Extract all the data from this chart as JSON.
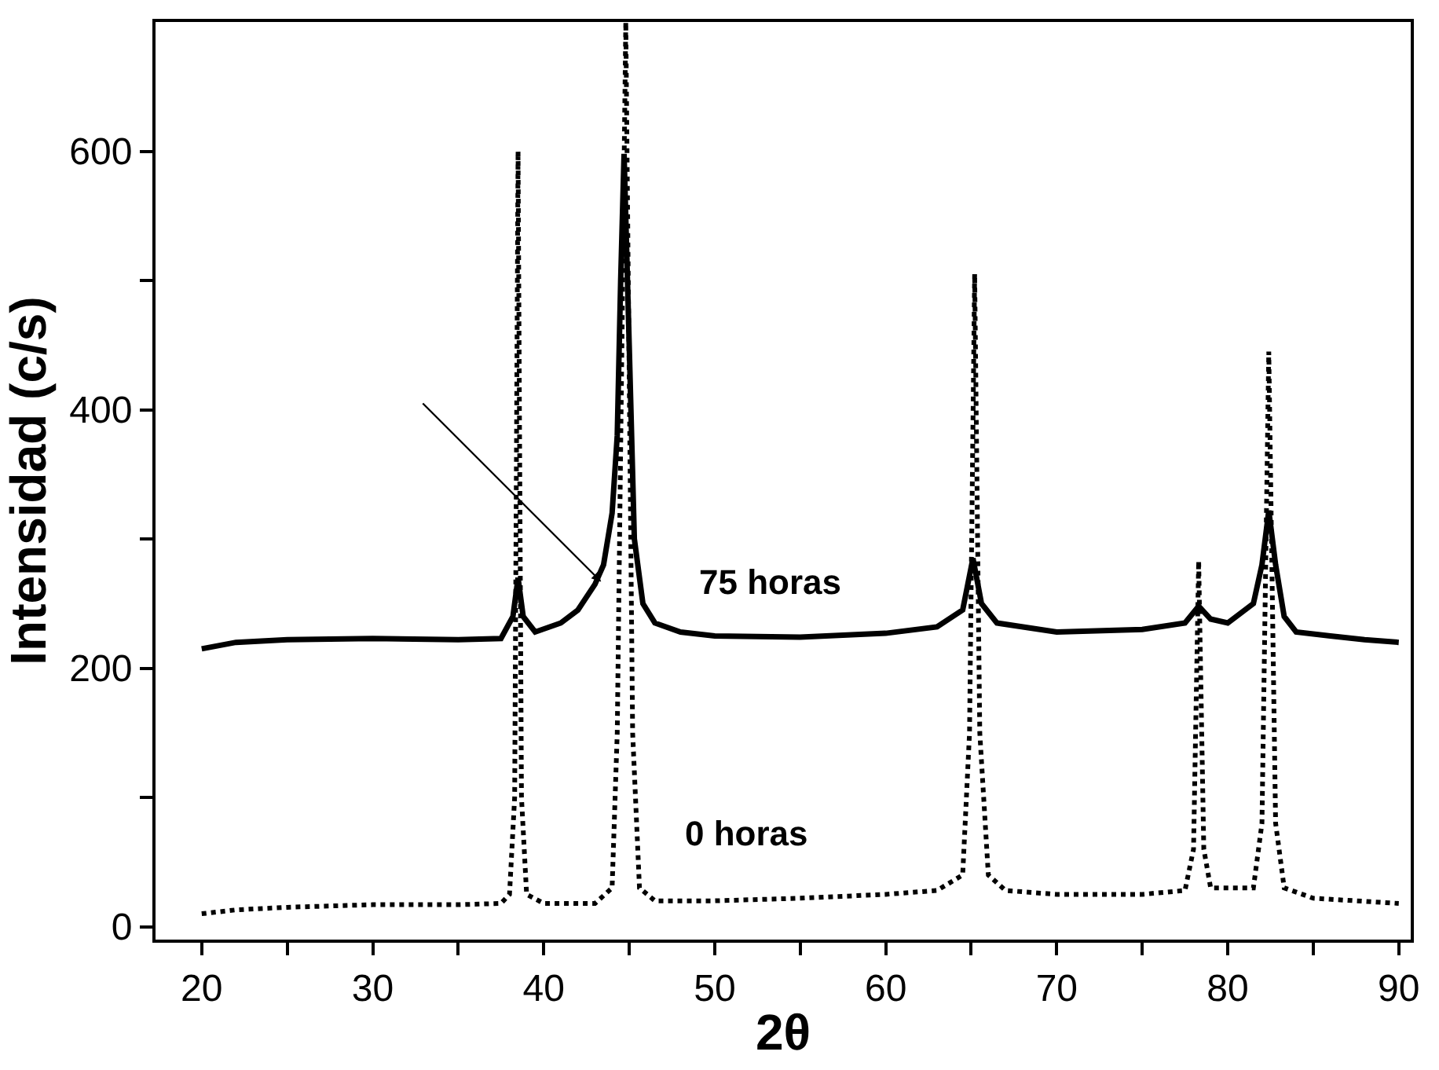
{
  "chart_data": {
    "type": "line",
    "xlabel": "2θ",
    "ylabel": "Intensidad (c/s)",
    "xlim": [
      17.3,
      90.7
    ],
    "ylim": [
      -10,
      700
    ],
    "xticks": [
      20,
      {
        "value": 25,
        "label": null
      },
      30,
      {
        "value": 35,
        "label": null
      },
      40,
      {
        "value": 45,
        "label": null
      },
      50,
      {
        "value": 55,
        "label": null
      },
      60,
      {
        "value": 65,
        "label": null
      },
      70,
      {
        "value": 75,
        "label": null
      },
      80,
      {
        "value": 85,
        "label": null
      },
      90
    ],
    "yticks": [
      0,
      {
        "value": 100,
        "label": null
      },
      200,
      {
        "value": 300,
        "label": null
      },
      400,
      {
        "value": 500,
        "label": null
      },
      600
    ],
    "legend": false,
    "marker": "none",
    "series": [
      {
        "name": "75 horas",
        "color": "#000000",
        "line_style": "solid",
        "x": [
          20,
          22,
          25,
          30,
          35,
          37.5,
          38.2,
          38.5,
          38.8,
          39.5,
          41,
          42,
          43,
          43.5,
          44,
          44.3,
          44.5,
          44.7,
          45,
          45.3,
          45.8,
          46.5,
          48,
          50,
          55,
          60,
          63,
          64.5,
          65.1,
          65.6,
          66.5,
          70,
          75,
          77.5,
          78.3,
          79,
          80,
          81.5,
          82,
          82.4,
          82.8,
          83.3,
          84,
          86,
          88,
          90
        ],
        "values": [
          215,
          220,
          222,
          223,
          222,
          223,
          240,
          270,
          240,
          228,
          235,
          245,
          265,
          280,
          320,
          380,
          500,
          598,
          450,
          300,
          250,
          235,
          228,
          225,
          224,
          227,
          232,
          245,
          285,
          250,
          235,
          228,
          230,
          235,
          248,
          238,
          235,
          250,
          280,
          322,
          280,
          240,
          228,
          225,
          222,
          220
        ]
      },
      {
        "name": "0 horas",
        "color": "#000000",
        "line_style": "dotted",
        "x": [
          20,
          22,
          25,
          30,
          35,
          37.5,
          38,
          38.3,
          38.5,
          38.7,
          39,
          40,
          43,
          44,
          44.3,
          44.8,
          45.2,
          45.6,
          46.5,
          50,
          55,
          60,
          63,
          64.5,
          64.9,
          65.2,
          65.5,
          66,
          67,
          70,
          75,
          77.5,
          78,
          78.3,
          78.6,
          79,
          81.5,
          82,
          82.4,
          82.8,
          83.3,
          85,
          90
        ],
        "values": [
          10,
          13,
          15,
          17,
          17,
          18,
          25,
          100,
          600,
          100,
          25,
          18,
          18,
          30,
          150,
          700,
          150,
          30,
          20,
          20,
          22,
          25,
          28,
          40,
          150,
          505,
          150,
          40,
          28,
          25,
          25,
          28,
          60,
          283,
          60,
          30,
          30,
          80,
          445,
          80,
          30,
          22,
          18
        ]
      }
    ]
  }
}
